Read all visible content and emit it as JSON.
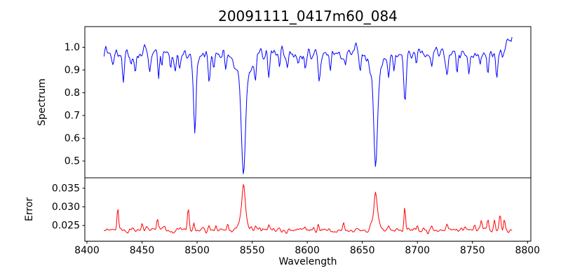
{
  "figure": {
    "background": "#ffffff",
    "axis_color": "#000000"
  },
  "chart_data": {
    "type": "line",
    "title": "20091111_0417m60_084",
    "xlabel": "Wavelength",
    "xlim": [
      8398.1,
      8803.0
    ],
    "xticks": [
      8400,
      8450,
      8500,
      8550,
      8600,
      8650,
      8700,
      8750,
      8800
    ],
    "xtick_labels": [
      "8400",
      "8450",
      "8500",
      "8550",
      "8600",
      "8650",
      "8700",
      "8750",
      "8800"
    ],
    "x_data_range": [
      8415.5,
      8786.3
    ],
    "x_step": 0.8,
    "grid": false,
    "legend": "none",
    "subplots": [
      {
        "ylabel": "Spectrum",
        "ylim": [
          0.4262,
          1.0908
        ],
        "yticks": [
          0.5,
          0.6,
          0.7,
          0.8,
          0.9,
          1.0
        ],
        "ytick_labels": [
          "0.5",
          "0.6",
          "0.7",
          "0.8",
          "0.9",
          "1.0"
        ],
        "series": {
          "name": "spectrum",
          "color": "#0000ff",
          "continuum": 0.972,
          "noise_sigma": 0.02,
          "seed": 84,
          "continuum_bumps": [
            [
              8417,
              0.03,
              1.0
            ],
            [
              8452,
              0.03,
              0.8
            ],
            [
              8644,
              0.035,
              1.5
            ],
            [
              8784,
              0.07,
              2.4
            ]
          ],
          "absorption_lines": [
            [
              8424,
              0.055,
              0.8
            ],
            [
              8433,
              0.125,
              0.9
            ],
            [
              8440,
              0.06,
              0.7
            ],
            [
              8444,
              0.085,
              0.7
            ],
            [
              8457,
              0.075,
              0.8
            ],
            [
              8465,
              0.12,
              0.7
            ],
            [
              8468,
              0.075,
              0.6
            ],
            [
              8476,
              0.05,
              0.7
            ],
            [
              8480,
              0.055,
              0.7
            ],
            [
              8484,
              0.055,
              0.7
            ],
            [
              8498.0,
              0.28,
              1.0
            ],
            [
              8498.0,
              0.07,
              3.0
            ],
            [
              8511,
              0.13,
              0.9
            ],
            [
              8515,
              0.07,
              0.8
            ],
            [
              8526,
              0.06,
              0.8
            ],
            [
              8542.1,
              0.41,
              1.7
            ],
            [
              8542.1,
              0.12,
              6.0
            ],
            [
              8553,
              0.09,
              0.8
            ],
            [
              8565,
              0.115,
              0.9
            ],
            [
              8575,
              0.05,
              0.7
            ],
            [
              8582,
              0.06,
              0.8
            ],
            [
              8592,
              0.05,
              0.7
            ],
            [
              8598,
              0.07,
              0.8
            ],
            [
              8611,
              0.12,
              0.9
            ],
            [
              8621,
              0.065,
              0.8
            ],
            [
              8635,
              0.05,
              0.7
            ],
            [
              8648,
              0.07,
              0.8
            ],
            [
              8662.1,
              0.385,
              1.6
            ],
            [
              8662.1,
              0.105,
              5.0
            ],
            [
              8674,
              0.09,
              0.8
            ],
            [
              8679,
              0.06,
              0.7
            ],
            [
              8688.6,
              0.215,
              1.1
            ],
            [
              8699,
              0.05,
              0.7
            ],
            [
              8713,
              0.07,
              0.8
            ],
            [
              8727,
              0.105,
              0.9
            ],
            [
              8736,
              0.09,
              0.8
            ],
            [
              8747,
              0.085,
              0.8
            ],
            [
              8757,
              0.07,
              0.7
            ],
            [
              8764,
              0.1,
              0.8
            ],
            [
              8772,
              0.095,
              0.8
            ]
          ]
        }
      },
      {
        "ylabel": "Error",
        "ylim": [
          0.0208,
          0.0378
        ],
        "yticks": [
          0.025,
          0.03,
          0.035
        ],
        "ytick_labels": [
          "0.025",
          "0.030",
          "0.035"
        ],
        "series": {
          "name": "error",
          "color": "#ff0000",
          "baseline": 0.0238,
          "noise_sigma": 0.00055,
          "seed": 417,
          "emission_peaks": [
            [
              8428,
              0.006,
              0.7
            ],
            [
              8450,
              0.0018,
              0.6
            ],
            [
              8464,
              0.0028,
              0.7
            ],
            [
              8492,
              0.0054,
              0.8
            ],
            [
              8497,
              0.002,
              0.6
            ],
            [
              8511,
              0.0014,
              0.7
            ],
            [
              8517,
              0.0016,
              0.7
            ],
            [
              8528,
              0.0018,
              0.7
            ],
            [
              8542.1,
              0.0088,
              1.3
            ],
            [
              8542.1,
              0.0034,
              4.0
            ],
            [
              8553,
              0.0013,
              0.7
            ],
            [
              8565,
              0.0013,
              0.7
            ],
            [
              8598,
              0.001,
              0.7
            ],
            [
              8610,
              0.0013,
              0.7
            ],
            [
              8633,
              0.0015,
              0.7
            ],
            [
              8662.1,
              0.0072,
              1.3
            ],
            [
              8662.1,
              0.003,
              3.5
            ],
            [
              8674,
              0.0015,
              0.8
            ],
            [
              8688.6,
              0.0058,
              0.7
            ],
            [
              8700,
              0.0011,
              0.7
            ],
            [
              8713,
              0.0011,
              0.7
            ],
            [
              8727,
              0.0015,
              0.8
            ],
            [
              8740,
              0.0013,
              0.7
            ],
            [
              8752,
              0.0017,
              0.8
            ],
            [
              8758,
              0.0021,
              0.7
            ],
            [
              8764,
              0.0028,
              0.8
            ],
            [
              8770,
              0.0026,
              0.7
            ],
            [
              8775,
              0.0043,
              0.8
            ],
            [
              8779,
              0.0028,
              0.6
            ],
            [
              8783,
              -0.0009,
              1.0
            ]
          ]
        }
      }
    ]
  }
}
